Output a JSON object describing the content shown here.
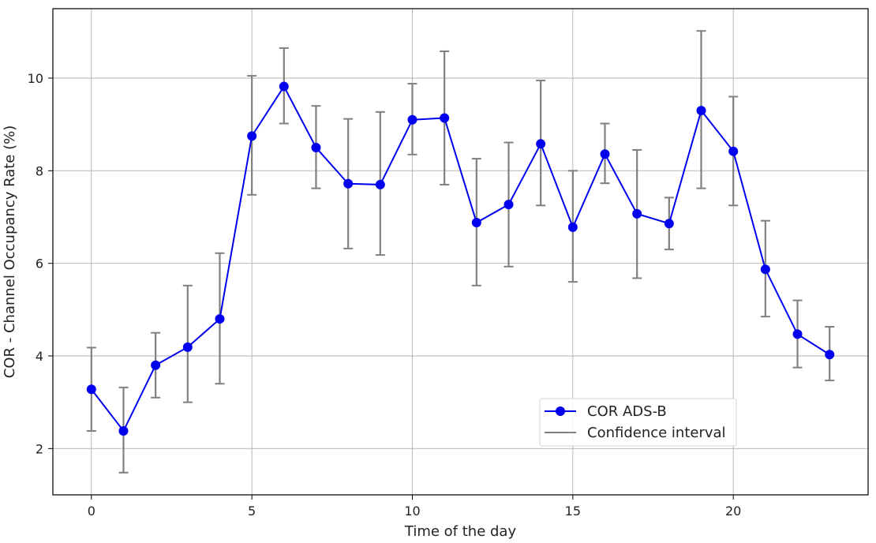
{
  "chart_data": {
    "type": "line",
    "title": "",
    "xlabel": "Time of the day",
    "ylabel": "COR - Channel Occupancy Rate (%)",
    "xlim": [
      -1.2,
      24.2
    ],
    "ylim": [
      1.0,
      11.5
    ],
    "xticks": [
      0,
      5,
      10,
      15,
      20
    ],
    "yticks": [
      2,
      4,
      6,
      8,
      10
    ],
    "grid": true,
    "legend_position": "lower-right",
    "x": [
      0,
      1,
      2,
      3,
      4,
      5,
      6,
      7,
      8,
      9,
      10,
      11,
      12,
      13,
      14,
      15,
      16,
      17,
      18,
      19,
      20,
      21,
      22,
      23
    ],
    "series": [
      {
        "name": "COR ADS-B",
        "color": "#0000ee",
        "values": [
          3.28,
          2.38,
          3.8,
          4.19,
          4.8,
          8.75,
          9.82,
          8.5,
          7.72,
          7.7,
          9.1,
          9.14,
          6.88,
          7.27,
          8.58,
          6.78,
          8.36,
          7.07,
          6.86,
          9.3,
          8.42,
          5.87,
          4.47,
          4.03
        ]
      }
    ],
    "error_bars": {
      "name": "Confidence interval",
      "color": "#808080",
      "lower": [
        2.38,
        1.48,
        3.1,
        3.0,
        3.4,
        7.48,
        9.02,
        7.62,
        6.32,
        6.18,
        8.35,
        7.7,
        5.52,
        5.93,
        7.25,
        5.6,
        7.73,
        5.68,
        6.3,
        7.62,
        7.25,
        4.85,
        3.75,
        3.47
      ],
      "upper": [
        4.18,
        3.32,
        4.5,
        5.52,
        6.22,
        10.05,
        10.65,
        9.4,
        9.12,
        9.27,
        9.88,
        10.58,
        8.26,
        8.61,
        9.95,
        8.0,
        9.02,
        8.45,
        7.42,
        11.02,
        9.6,
        6.92,
        5.2,
        4.63
      ]
    }
  }
}
